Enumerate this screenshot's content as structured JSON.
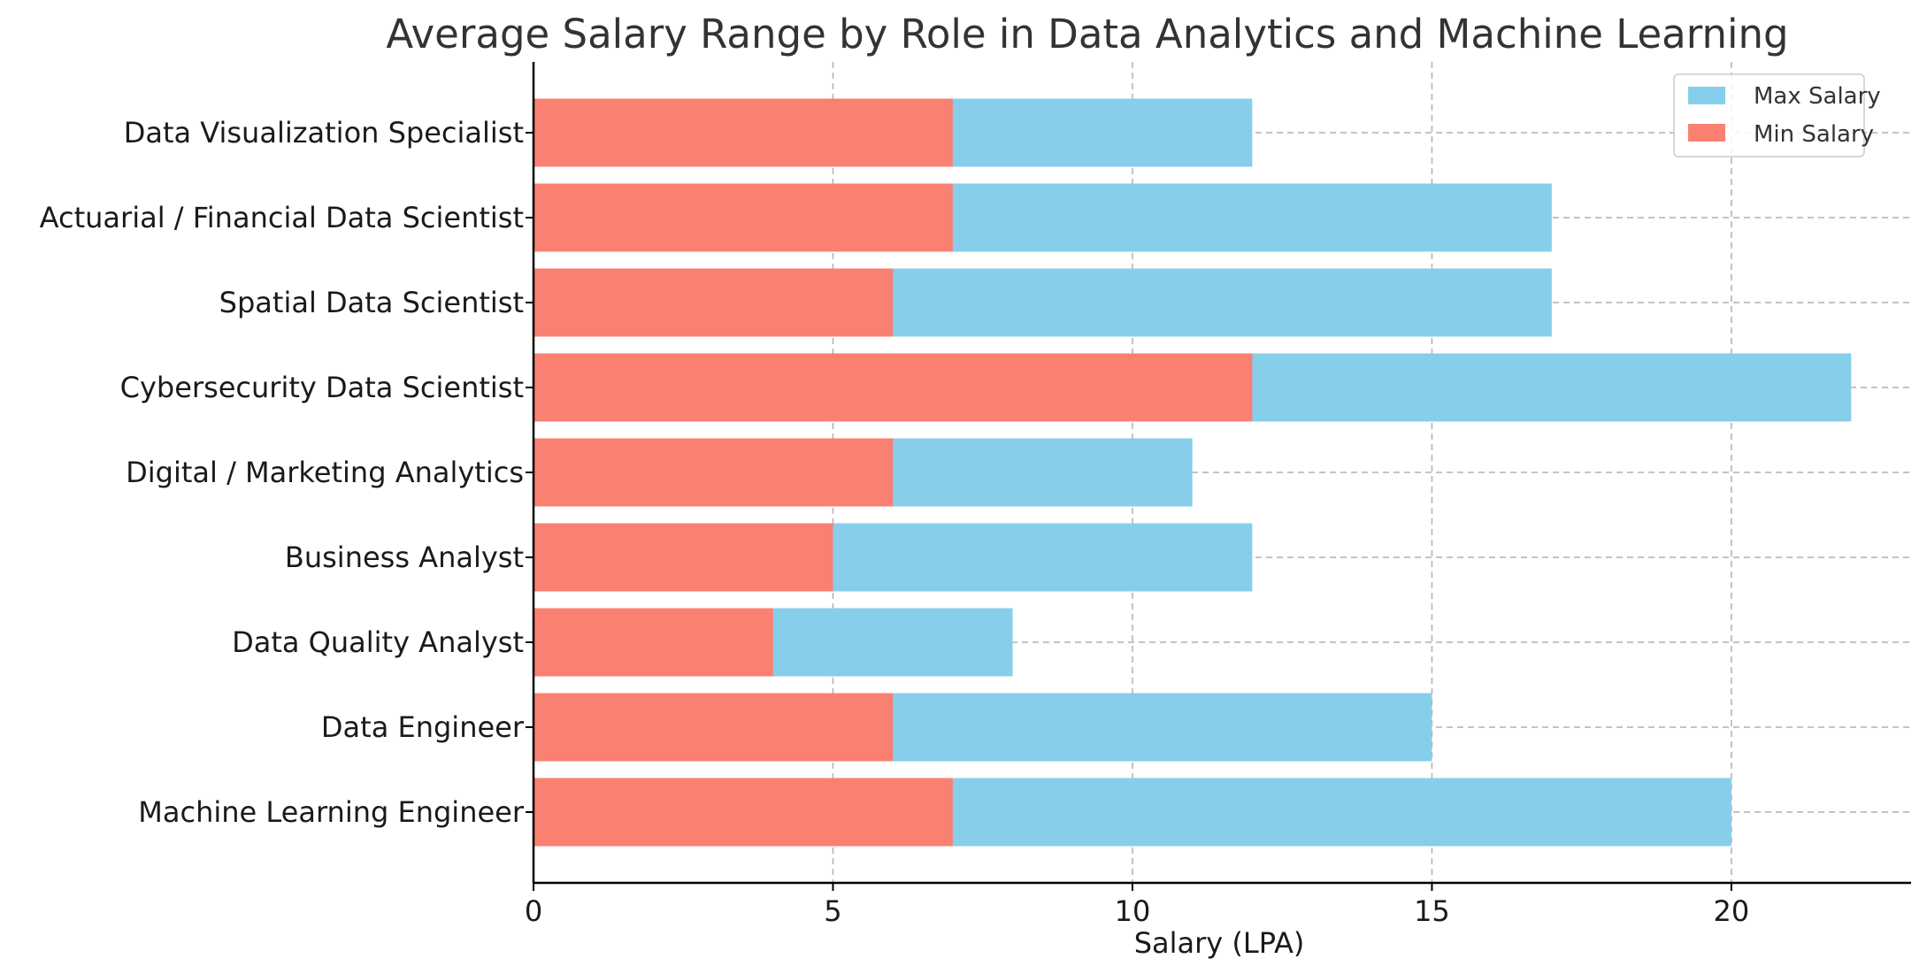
{
  "chart_data": {
    "type": "bar",
    "orientation": "horizontal",
    "title": "Average Salary Range by Role in Data Analytics and Machine Learning",
    "xlabel": "Salary (LPA)",
    "ylabel": "",
    "xlim": [
      0,
      23
    ],
    "xticks": [
      0,
      5,
      10,
      15,
      20
    ],
    "grid": true,
    "legend_position": "top-right",
    "categories": [
      "Machine Learning Engineer",
      "Data Engineer",
      "Data Quality Analyst",
      "Business Analyst",
      "Digital / Marketing Analytics",
      "Cybersecurity Data Scientist",
      "Spatial Data Scientist",
      "Actuarial / Financial Data Scientist",
      "Data Visualization Specialist"
    ],
    "series": [
      {
        "name": "Max Salary",
        "color": "#87ceeb",
        "values": [
          20,
          15,
          8,
          12,
          11,
          22,
          17,
          17,
          12
        ]
      },
      {
        "name": "Min Salary",
        "color": "#fa8072",
        "values": [
          7,
          6,
          4,
          5,
          6,
          12,
          6,
          7,
          7
        ]
      }
    ]
  }
}
